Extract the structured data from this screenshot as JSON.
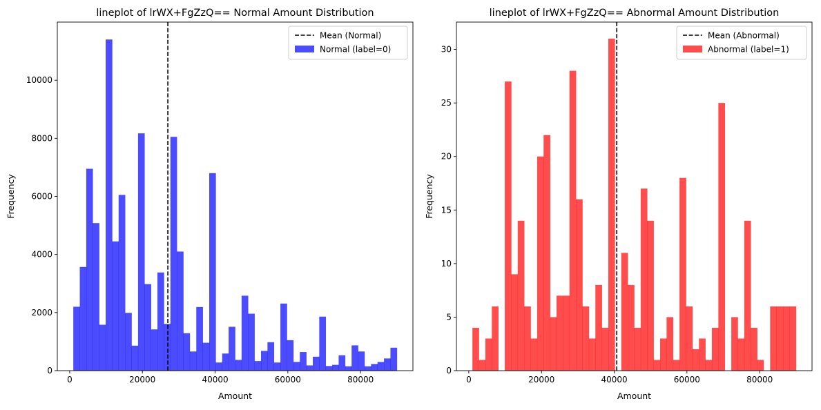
{
  "chart_data": [
    {
      "type": "bar",
      "title": "lineplot of lrWX+FgZzQ== Normal Amount Distribution",
      "xlabel": "Amount",
      "ylabel": "Frequency",
      "xlim": [
        -3400,
        94400
      ],
      "ylim": [
        0,
        12000
      ],
      "xticks": [
        0,
        20000,
        40000,
        60000,
        80000
      ],
      "yticks": [
        0,
        2000,
        4000,
        6000,
        8000,
        10000
      ],
      "grid": false,
      "legend_position": "top-right",
      "bin_start": 1000,
      "bin_width": 1780,
      "values": [
        2200,
        3570,
        6950,
        5080,
        1580,
        11400,
        4450,
        6050,
        1990,
        860,
        8170,
        2980,
        1420,
        3380,
        1610,
        8050,
        4100,
        1290,
        660,
        2190,
        960,
        6800,
        280,
        590,
        1510,
        370,
        2580,
        1960,
        330,
        680,
        980,
        280,
        2310,
        1050,
        300,
        640,
        180,
        480,
        1860,
        160,
        200,
        530,
        150,
        870,
        660,
        150,
        230,
        300,
        420,
        790
      ],
      "bar_color": "#0000ff",
      "bar_opacity": 0.7,
      "bar_legend": "Normal (label=0)",
      "mean": 27000,
      "mean_legend": "Mean (Normal)",
      "mean_color": "#000000"
    },
    {
      "type": "bar",
      "title": "lineplot of lrWX+FgZzQ== Abnormal Amount Distribution",
      "xlabel": "Amount",
      "ylabel": "Frequency",
      "xlim": [
        -3400,
        94400
      ],
      "ylim": [
        0,
        32.55
      ],
      "xticks": [
        0,
        20000,
        40000,
        60000,
        80000
      ],
      "yticks": [
        0,
        5,
        10,
        15,
        20,
        25,
        30
      ],
      "grid": false,
      "legend_position": "top-right",
      "bin_start": 1000,
      "bin_width": 1780,
      "values": [
        4,
        1,
        3,
        6,
        0,
        27,
        9,
        14,
        6,
        3,
        20,
        22,
        5,
        7,
        7,
        28,
        16,
        6,
        3,
        8,
        4,
        31,
        0,
        11,
        8,
        4,
        17,
        14,
        1,
        3,
        5,
        1,
        18,
        6,
        2,
        3,
        1,
        4,
        25,
        0,
        5,
        3,
        14,
        4,
        1,
        0,
        6,
        6,
        6,
        6
      ],
      "bar_color": "#ff0000",
      "bar_opacity": 0.7,
      "bar_legend": "Abnormal (label=1)",
      "mean": 40700,
      "mean_legend": "Mean (Abnormal)",
      "mean_color": "#000000"
    }
  ]
}
